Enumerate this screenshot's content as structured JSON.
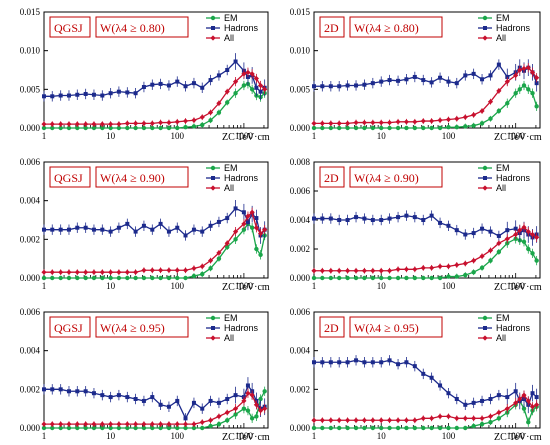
{
  "series_colors": {
    "EM": "#1aa64a",
    "Hadrons": "#1c2a8c",
    "All": "#c8102e"
  },
  "chart_data": [
    {
      "type": "line",
      "model": "QGSJ",
      "condition": "W(λ4 ≥ 0.80)",
      "xlabel": "ZC TeV·cm",
      "x_scale": "log",
      "xticks": [
        "1",
        "10",
        "100",
        "1000"
      ],
      "ylim": [
        0,
        0.015
      ],
      "yticks": [
        "0.000",
        "0.005",
        "0.010",
        "0.015"
      ],
      "x": [
        1,
        1.33,
        1.78,
        2.37,
        3.16,
        4.22,
        5.62,
        7.5,
        10,
        13.3,
        17.8,
        23.7,
        31.6,
        42.2,
        56.2,
        75,
        100,
        133,
        178,
        237,
        316,
        422,
        562,
        750,
        1000,
        1150,
        1330,
        1540,
        1780,
        2050
      ],
      "series": [
        {
          "name": "EM",
          "values": [
            0,
            0,
            0,
            0,
            0,
            0,
            0,
            0,
            0,
            0,
            0,
            0,
            0,
            0,
            0,
            0,
            0,
            0.0001,
            0.0002,
            0.0004,
            0.001,
            0.002,
            0.0033,
            0.0045,
            0.0055,
            0.0057,
            0.005,
            0.0042,
            0.004,
            0.0045
          ]
        },
        {
          "name": "Hadrons",
          "values": [
            0.0041,
            0.0041,
            0.0042,
            0.0042,
            0.0043,
            0.0044,
            0.0043,
            0.0042,
            0.0045,
            0.0047,
            0.0046,
            0.0045,
            0.0053,
            0.0056,
            0.0057,
            0.0055,
            0.006,
            0.0054,
            0.0058,
            0.0052,
            0.0062,
            0.0068,
            0.0075,
            0.0086,
            0.0074,
            0.0066,
            0.0068,
            0.0052,
            0.0047,
            0.0052
          ]
        },
        {
          "name": "All",
          "values": [
            0.0005,
            0.0005,
            0.0005,
            0.0005,
            0.0005,
            0.0005,
            0.0005,
            0.0005,
            0.0005,
            0.0005,
            0.0006,
            0.0006,
            0.0006,
            0.0006,
            0.0007,
            0.0007,
            0.0008,
            0.0009,
            0.001,
            0.0014,
            0.002,
            0.0032,
            0.0047,
            0.006,
            0.007,
            0.0072,
            0.007,
            0.0064,
            0.0055,
            0.005
          ]
        }
      ],
      "legend": [
        "EM",
        "Hadrons",
        "All"
      ],
      "legend_position": "top-right"
    },
    {
      "type": "line",
      "model": "2D",
      "condition": "W(λ4 ≥ 0.80)",
      "xlabel": "ZC TeV·cm",
      "x_scale": "log",
      "xticks": [
        "1",
        "10",
        "100",
        "1000"
      ],
      "ylim": [
        0,
        0.015
      ],
      "yticks": [
        "0.000",
        "0.005",
        "0.010",
        "0.015"
      ],
      "x": [
        1,
        1.33,
        1.78,
        2.37,
        3.16,
        4.22,
        5.62,
        7.5,
        10,
        13.3,
        17.8,
        23.7,
        31.6,
        42.2,
        56.2,
        75,
        100,
        133,
        178,
        237,
        316,
        422,
        562,
        750,
        1000,
        1150,
        1330,
        1540,
        1780,
        2050
      ],
      "series": [
        {
          "name": "EM",
          "values": [
            0,
            0,
            0,
            0,
            0,
            0,
            0,
            0,
            0,
            0,
            0,
            0,
            0,
            0,
            0,
            0,
            0.0001,
            0.0001,
            0.0002,
            0.0003,
            0.0006,
            0.0012,
            0.0022,
            0.0032,
            0.0045,
            0.005,
            0.0055,
            0.005,
            0.0045,
            0.0028
          ]
        },
        {
          "name": "Hadrons",
          "values": [
            0.0054,
            0.0054,
            0.0054,
            0.0054,
            0.0055,
            0.0055,
            0.0056,
            0.0058,
            0.006,
            0.0062,
            0.0061,
            0.0063,
            0.0066,
            0.0062,
            0.0059,
            0.0065,
            0.006,
            0.0058,
            0.0068,
            0.007,
            0.0063,
            0.0068,
            0.0082,
            0.0066,
            0.0072,
            0.0078,
            0.0074,
            0.0078,
            0.0072,
            0.0058
          ]
        },
        {
          "name": "All",
          "values": [
            0.0006,
            0.0006,
            0.0006,
            0.0006,
            0.0006,
            0.0007,
            0.0007,
            0.0007,
            0.0007,
            0.0007,
            0.0008,
            0.0008,
            0.0008,
            0.0009,
            0.0009,
            0.001,
            0.0011,
            0.0012,
            0.0014,
            0.0017,
            0.0022,
            0.0034,
            0.0048,
            0.006,
            0.0068,
            0.0075,
            0.0077,
            0.0078,
            0.0072,
            0.0065
          ]
        }
      ],
      "legend": [
        "EM",
        "Hadrons",
        "All"
      ],
      "legend_position": "top-right"
    },
    {
      "type": "line",
      "model": "QGSJ",
      "condition": "W(λ4 ≥ 0.90)",
      "xlabel": "ZC TeV·cm",
      "x_scale": "log",
      "xticks": [
        "1",
        "10",
        "100",
        "1000"
      ],
      "ylim": [
        0,
        0.006
      ],
      "yticks": [
        "0.000",
        "0.002",
        "0.004",
        "0.006"
      ],
      "x": [
        1,
        1.33,
        1.78,
        2.37,
        3.16,
        4.22,
        5.62,
        7.5,
        10,
        13.3,
        17.8,
        23.7,
        31.6,
        42.2,
        56.2,
        75,
        100,
        133,
        178,
        237,
        316,
        422,
        562,
        750,
        1000,
        1150,
        1330,
        1540,
        1780,
        2050
      ],
      "series": [
        {
          "name": "EM",
          "values": [
            0,
            0,
            0,
            0,
            0,
            0,
            0,
            0,
            0,
            0,
            0,
            0,
            0,
            0,
            0,
            0,
            0,
            0,
            0.0001,
            0.0002,
            0.0005,
            0.001,
            0.0016,
            0.002,
            0.0025,
            0.0028,
            0.0026,
            0.0015,
            0.0012,
            0.0022
          ]
        },
        {
          "name": "Hadrons",
          "values": [
            0.0025,
            0.0025,
            0.0025,
            0.0025,
            0.0026,
            0.0026,
            0.0025,
            0.0025,
            0.0024,
            0.0026,
            0.0028,
            0.0024,
            0.0027,
            0.0025,
            0.0028,
            0.0024,
            0.0026,
            0.0022,
            0.0025,
            0.0024,
            0.0027,
            0.0029,
            0.0031,
            0.0036,
            0.0034,
            0.0029,
            0.0033,
            0.0031,
            0.0022,
            0.0025
          ]
        },
        {
          "name": "All",
          "values": [
            0.0003,
            0.0003,
            0.0003,
            0.0003,
            0.0003,
            0.0003,
            0.0003,
            0.0003,
            0.0003,
            0.0003,
            0.0003,
            0.0003,
            0.0004,
            0.0004,
            0.0004,
            0.0004,
            0.0004,
            0.0004,
            0.0005,
            0.0006,
            0.0009,
            0.0013,
            0.0018,
            0.0024,
            0.0028,
            0.0032,
            0.0034,
            0.0026,
            0.0023,
            0.0025
          ]
        }
      ],
      "legend": [
        "EM",
        "Hadrons",
        "All"
      ],
      "legend_position": "top-right"
    },
    {
      "type": "line",
      "model": "2D",
      "condition": "W(λ4 ≥ 0.90)",
      "xlabel": "ZC TeV·cm",
      "x_scale": "log",
      "xticks": [
        "1",
        "10",
        "100",
        "1000"
      ],
      "ylim": [
        0,
        0.008
      ],
      "yticks": [
        "0.000",
        "0.002",
        "0.004",
        "0.006",
        "0.008"
      ],
      "x": [
        1,
        1.33,
        1.78,
        2.37,
        3.16,
        4.22,
        5.62,
        7.5,
        10,
        13.3,
        17.8,
        23.7,
        31.6,
        42.2,
        56.2,
        75,
        100,
        133,
        178,
        237,
        316,
        422,
        562,
        750,
        1000,
        1150,
        1330,
        1540,
        1780,
        2050
      ],
      "series": [
        {
          "name": "EM",
          "values": [
            0,
            0,
            0,
            0,
            0,
            0,
            0,
            0,
            0,
            0,
            0,
            0,
            0,
            0,
            0,
            0,
            0.0001,
            0.0001,
            0.0002,
            0.0004,
            0.0007,
            0.0012,
            0.0018,
            0.0024,
            0.0027,
            0.0026,
            0.0025,
            0.002,
            0.0017,
            0.0012
          ]
        },
        {
          "name": "Hadrons",
          "values": [
            0.0041,
            0.0041,
            0.0041,
            0.004,
            0.004,
            0.0042,
            0.0041,
            0.004,
            0.004,
            0.0041,
            0.0042,
            0.0043,
            0.0042,
            0.004,
            0.0043,
            0.0038,
            0.0036,
            0.0033,
            0.003,
            0.0031,
            0.0034,
            0.0032,
            0.0029,
            0.0033,
            0.0034,
            0.0031,
            0.0033,
            0.003,
            0.0028,
            0.003
          ]
        },
        {
          "name": "All",
          "values": [
            0.0005,
            0.0005,
            0.0005,
            0.0005,
            0.0005,
            0.0005,
            0.0005,
            0.0005,
            0.0005,
            0.0005,
            0.0006,
            0.0006,
            0.0006,
            0.0007,
            0.0007,
            0.0008,
            0.0008,
            0.0009,
            0.001,
            0.0012,
            0.0015,
            0.0019,
            0.0024,
            0.0027,
            0.003,
            0.0033,
            0.0035,
            0.0032,
            0.003,
            0.0028
          ]
        }
      ],
      "legend": [
        "EM",
        "Hadrons",
        "All"
      ],
      "legend_position": "top-right"
    },
    {
      "type": "line",
      "model": "QGSJ",
      "condition": "W(λ4 ≥ 0.95)",
      "xlabel": "ZC TeV·cm",
      "x_scale": "log",
      "xticks": [
        "1",
        "10",
        "100",
        "1000"
      ],
      "ylim": [
        0,
        0.006
      ],
      "yticks": [
        "0.000",
        "0.002",
        "0.004",
        "0.006"
      ],
      "x": [
        1,
        1.33,
        1.78,
        2.37,
        3.16,
        4.22,
        5.62,
        7.5,
        10,
        13.3,
        17.8,
        23.7,
        31.6,
        42.2,
        56.2,
        75,
        100,
        133,
        178,
        237,
        316,
        422,
        562,
        750,
        1000,
        1150,
        1330,
        1540,
        1780,
        2050
      ],
      "series": [
        {
          "name": "EM",
          "values": [
            0,
            0,
            0,
            0,
            0,
            0,
            0,
            0,
            0,
            0,
            0,
            0,
            0,
            0,
            0,
            0,
            0,
            0,
            0,
            0,
            0.0001,
            0.0002,
            0.0004,
            0.0007,
            0.001,
            0.0009,
            0.0005,
            0.0006,
            0.0015,
            0.0019
          ]
        },
        {
          "name": "Hadrons",
          "values": [
            0.002,
            0.002,
            0.002,
            0.0019,
            0.0019,
            0.0019,
            0.0018,
            0.0017,
            0.0016,
            0.0017,
            0.0016,
            0.0015,
            0.0014,
            0.0016,
            0.0012,
            0.0011,
            0.0014,
            0.0005,
            0.0013,
            0.001,
            0.0014,
            0.0013,
            0.0015,
            0.0017,
            0.0016,
            0.0022,
            0.0019,
            0.0014,
            0.001,
            0.0011
          ]
        },
        {
          "name": "All",
          "values": [
            0.0002,
            0.0002,
            0.0002,
            0.0002,
            0.0002,
            0.0002,
            0.0002,
            0.0002,
            0.0002,
            0.0002,
            0.0002,
            0.0002,
            0.0002,
            0.0002,
            0.0002,
            0.0002,
            0.0002,
            0.0002,
            0.0002,
            0.0003,
            0.0004,
            0.0006,
            0.0008,
            0.001,
            0.0014,
            0.0018,
            0.0017,
            0.0012,
            0.0009,
            0.001
          ]
        }
      ],
      "legend": [
        "EM",
        "Hadrons",
        "All"
      ],
      "legend_position": "top-right"
    },
    {
      "type": "line",
      "model": "2D",
      "condition": "W(λ4 ≥ 0.95)",
      "xlabel": "ZC TeV·cm",
      "x_scale": "log",
      "xticks": [
        "1",
        "10",
        "100",
        "1000"
      ],
      "ylim": [
        0,
        0.006
      ],
      "yticks": [
        "0.000",
        "0.002",
        "0.004",
        "0.006"
      ],
      "x": [
        1,
        1.33,
        1.78,
        2.37,
        3.16,
        4.22,
        5.62,
        7.5,
        10,
        13.3,
        17.8,
        23.7,
        31.6,
        42.2,
        56.2,
        75,
        100,
        133,
        178,
        237,
        316,
        422,
        562,
        750,
        1000,
        1150,
        1330,
        1540,
        1780,
        2050
      ],
      "series": [
        {
          "name": "EM",
          "values": [
            0,
            0,
            0,
            0,
            0,
            0,
            0,
            0,
            0,
            0,
            0,
            0,
            0,
            0,
            0,
            0,
            0,
            0,
            0,
            0.0001,
            0.0002,
            0.0003,
            0.0005,
            0.0008,
            0.0012,
            0.0014,
            0.001,
            0.0003,
            0.0009,
            0.0011
          ]
        },
        {
          "name": "Hadrons",
          "values": [
            0.0034,
            0.0034,
            0.0034,
            0.0034,
            0.0034,
            0.0035,
            0.0034,
            0.0034,
            0.0034,
            0.0035,
            0.0033,
            0.0034,
            0.0032,
            0.0028,
            0.0026,
            0.0022,
            0.0018,
            0.0015,
            0.0012,
            0.0013,
            0.0014,
            0.0015,
            0.0017,
            0.0016,
            0.0019,
            0.0014,
            0.0015,
            0.0012,
            0.0018,
            0.0016
          ]
        },
        {
          "name": "All",
          "values": [
            0.0004,
            0.0004,
            0.0004,
            0.0004,
            0.0004,
            0.0004,
            0.0004,
            0.0004,
            0.0004,
            0.0004,
            0.0004,
            0.0004,
            0.0004,
            0.0005,
            0.0005,
            0.0006,
            0.0006,
            0.0005,
            0.0005,
            0.0005,
            0.0005,
            0.0006,
            0.0008,
            0.001,
            0.0013,
            0.0015,
            0.0017,
            0.0014,
            0.0011,
            0.0012
          ]
        }
      ],
      "legend": [
        "EM",
        "Hadrons",
        "All"
      ],
      "legend_position": "top-right"
    }
  ]
}
